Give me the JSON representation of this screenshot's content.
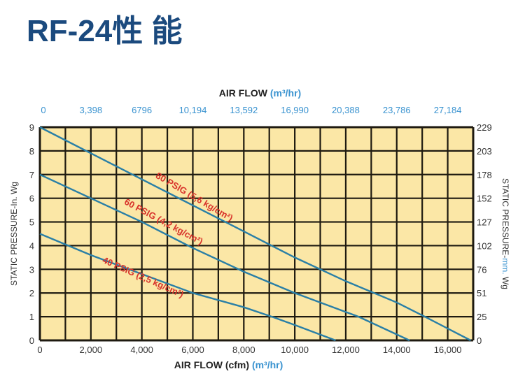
{
  "title": "RF-24性 能",
  "chart_data": {
    "type": "line",
    "title": "RF-24性 能",
    "xlabel": "AIR FLOW (cfm)",
    "xlabel_unit": "(m³/hr)",
    "x2label": "AIR FLOW",
    "x2label_unit": "(m³/hr)",
    "ylabel": "STATIC PRESSURE-In. Wg",
    "y2label_prefix": "STATIC PRESSURE-",
    "y2label_unit": "mm.",
    "y2label_suffix": " Wg",
    "xlim": [
      0,
      17000
    ],
    "ylim": [
      0,
      9
    ],
    "grid": true,
    "x_ticks": [
      "0",
      "2,000",
      "4,000",
      "6,000",
      "8,000",
      "10,000",
      "12,000",
      "14,000",
      "16,000"
    ],
    "x_tick_values": [
      0,
      2000,
      4000,
      6000,
      8000,
      10000,
      12000,
      14000,
      16000
    ],
    "x2_ticks": [
      "0",
      "3,398",
      "6796",
      "10,194",
      "13,592",
      "16,990",
      "20,388",
      "23,786",
      "27,184"
    ],
    "y_ticks": [
      "0",
      "1",
      "2",
      "3",
      "4",
      "5",
      "6",
      "7",
      "8",
      "9"
    ],
    "y2_ticks": [
      "0",
      "25",
      "51",
      "76",
      "102",
      "127",
      "152",
      "178",
      "203",
      "229"
    ],
    "colors": {
      "background": "#fbe7a6",
      "grid": "#1e1a10",
      "line": "#2a7fa6",
      "label": "#d8342c",
      "blue_text": "#3a93d0",
      "title": "#1b4a7e"
    },
    "series": [
      {
        "name": "80 PSIG (5,6 kg/cm²)",
        "x": [
          0,
          2000,
          4000,
          6000,
          8000,
          10000,
          12000,
          14000,
          15100,
          16900
        ],
        "y": [
          9,
          7.9,
          6.8,
          5.7,
          4.6,
          3.5,
          2.5,
          1.6,
          1,
          0
        ]
      },
      {
        "name": "60 PSIG (4,2 kg/cm²)",
        "x": [
          0,
          2000,
          4000,
          6000,
          8000,
          10000,
          12000,
          12500,
          14500
        ],
        "y": [
          7,
          6,
          5,
          3.9,
          2.9,
          2,
          1.2,
          1,
          0
        ]
      },
      {
        "name": "40 PSIG (2,5 kg/cm²)",
        "x": [
          0,
          2000,
          4000,
          6000,
          8000,
          9100,
          10000,
          11600
        ],
        "y": [
          4.5,
          3.6,
          2.8,
          2.0,
          1.4,
          1,
          0.65,
          0
        ]
      }
    ]
  }
}
